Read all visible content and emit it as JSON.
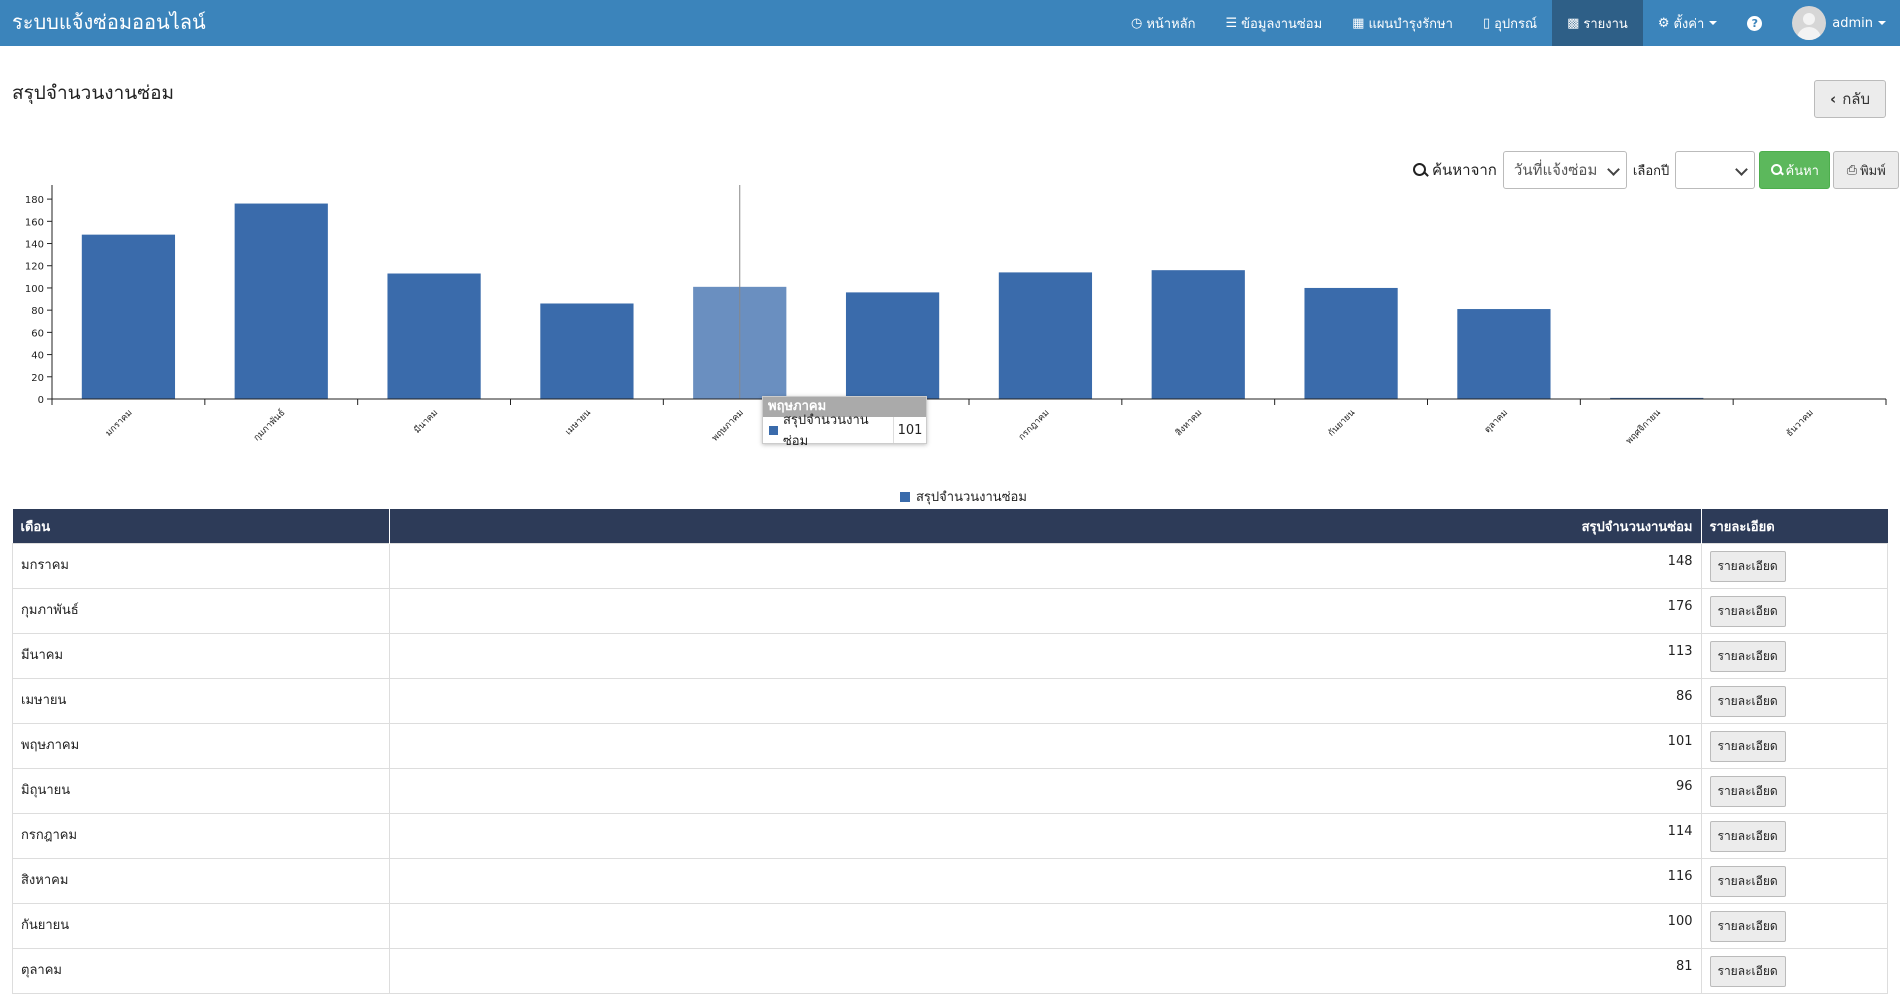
{
  "app": {
    "title": "ระบบแจ้งซ่อมออนไลน์"
  },
  "nav": {
    "items": [
      {
        "label": "หน้าหลัก",
        "icon": "clock-icon"
      },
      {
        "label": "ข้อมูลงานซ่อม",
        "icon": "server-icon"
      },
      {
        "label": "แผนบำรุงรักษา",
        "icon": "calendar-icon"
      },
      {
        "label": "อุปกรณ์",
        "icon": "mobile-icon"
      },
      {
        "label": "รายงาน",
        "icon": "bar-chart-icon",
        "active": true
      },
      {
        "label": "ตั้งค่า",
        "icon": "gear-icon"
      }
    ],
    "help": "?",
    "user": "admin"
  },
  "page": {
    "title": "สรุปจำนวนงานซ่อม",
    "back_label": "กลับ"
  },
  "search": {
    "label": "ค้นหาจาก",
    "field_value": "วันที่แจ้งซ่อม",
    "year_label": "เลือกปี",
    "year_value": "",
    "search_button": "ค้นหา",
    "print_button": "พิมพ์"
  },
  "chart_data": {
    "type": "bar",
    "categories": [
      "มกราคม",
      "กุมภาพันธ์",
      "มีนาคม",
      "เมษายน",
      "พฤษภาคม",
      "มิถุนายน",
      "กรกฎาคม",
      "สิงหาคม",
      "กันยายน",
      "ตุลาคม",
      "พฤศจิกายน",
      "ธันวาคม"
    ],
    "series": [
      {
        "name": "สรุปจำนวนงานซ่อม",
        "values": [
          148,
          176,
          113,
          86,
          101,
          96,
          114,
          116,
          100,
          81,
          1,
          0
        ]
      }
    ],
    "ylim": [
      0,
      190
    ],
    "yticks": [
      0,
      20,
      40,
      60,
      80,
      100,
      120,
      140,
      160,
      180
    ],
    "color": "#3a6bab",
    "highlight_color": "#6a8fc0",
    "highlight_index": 4,
    "legend": "bottom-center",
    "tooltip": {
      "title": "พฤษภาคม",
      "series": "สรุปจำนวนงานซ่อม",
      "value": "101"
    }
  },
  "table": {
    "headers": [
      "เดือน",
      "สรุปจำนวนงานซ่อม",
      "รายละเอียด"
    ],
    "detail_label": "รายละเอียด",
    "rows": [
      {
        "month": "มกราคม",
        "count": "148"
      },
      {
        "month": "กุมภาพันธ์",
        "count": "176"
      },
      {
        "month": "มีนาคม",
        "count": "113"
      },
      {
        "month": "เมษายน",
        "count": "86"
      },
      {
        "month": "พฤษภาคม",
        "count": "101"
      },
      {
        "month": "มิถุนายน",
        "count": "96"
      },
      {
        "month": "กรกฎาคม",
        "count": "114"
      },
      {
        "month": "สิงหาคม",
        "count": "116"
      },
      {
        "month": "กันยายน",
        "count": "100"
      },
      {
        "month": "ตุลาคม",
        "count": "81"
      }
    ]
  }
}
